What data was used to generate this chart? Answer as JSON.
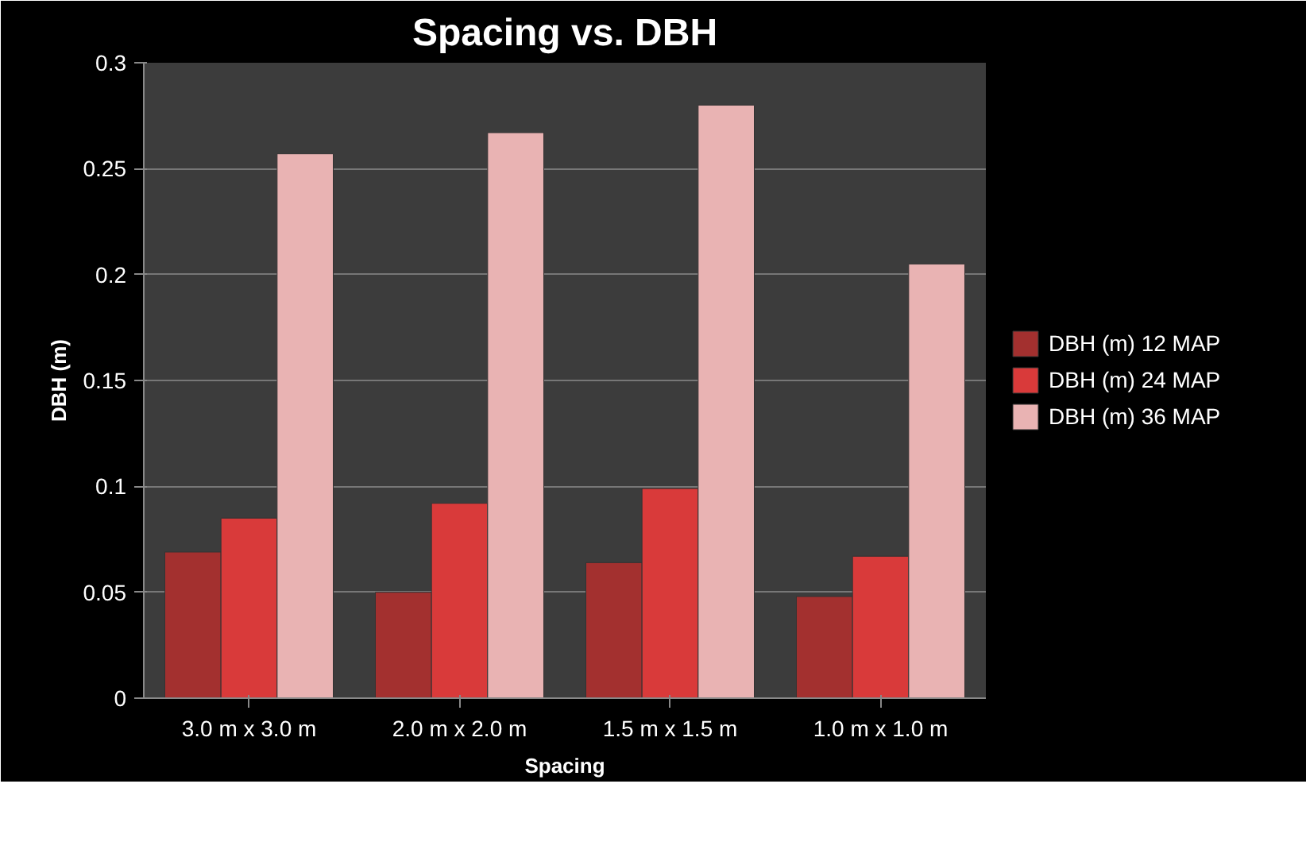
{
  "chart_data": {
    "type": "bar",
    "title": "Spacing vs. DBH",
    "xlabel": "Spacing",
    "ylabel": "DBH (m)",
    "categories": [
      "3.0 m x 3.0 m",
      "2.0 m x 2.0 m",
      "1.5 m x 1.5 m",
      "1.0 m x 1.0 m"
    ],
    "series": [
      {
        "name": "DBH (m) 12 MAP",
        "color": "#a3302f",
        "values": [
          0.069,
          0.05,
          0.064,
          0.048
        ]
      },
      {
        "name": "DBH (m) 24 MAP",
        "color": "#d93a3a",
        "values": [
          0.085,
          0.092,
          0.099,
          0.067
        ]
      },
      {
        "name": "DBH (m) 36 MAP",
        "color": "#e9b3b3",
        "values": [
          0.257,
          0.267,
          0.28,
          0.205
        ]
      }
    ],
    "ylim": [
      0,
      0.3
    ],
    "yticks": [
      0,
      0.05,
      0.1,
      0.15,
      0.2,
      0.25,
      0.3
    ],
    "grid": "y",
    "legend": "right"
  }
}
